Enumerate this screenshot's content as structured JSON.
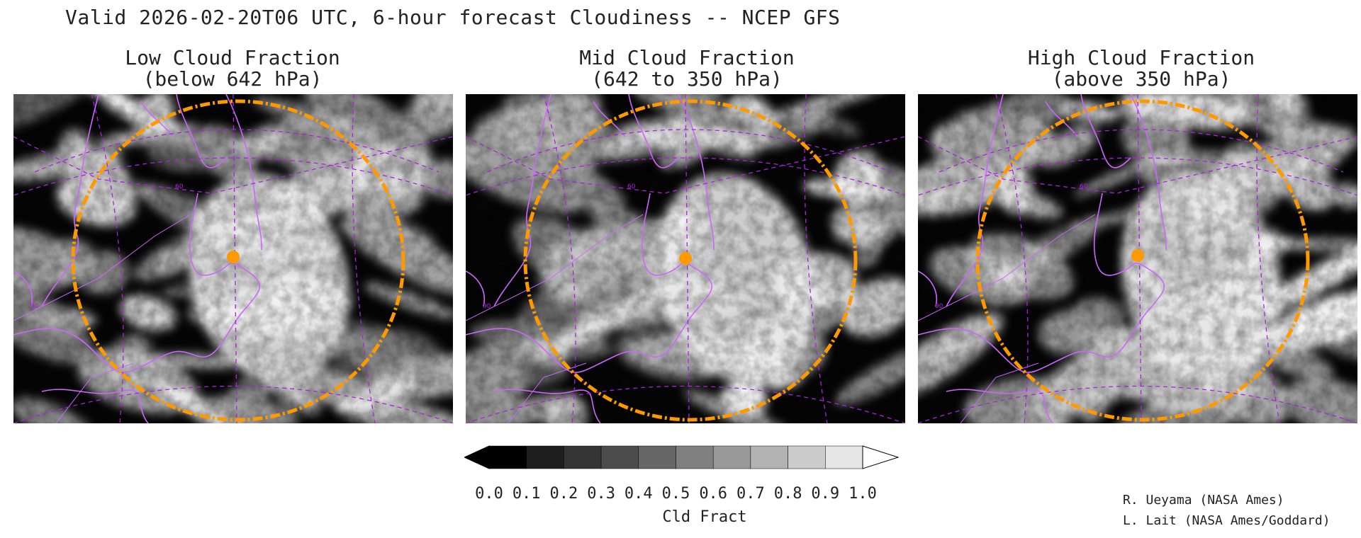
{
  "main_title": "Valid 2026-02-20T06 UTC, 6-hour forecast Cloudiness -- NCEP GFS",
  "panels": [
    {
      "title_line1": "Low Cloud Fraction",
      "title_line2": "(below 642 hPa)",
      "seed": 11,
      "bias": 0.62
    },
    {
      "title_line1": "Mid Cloud Fraction",
      "title_line2": "(642 to 350 hPa)",
      "seed": 27,
      "bias": 0.45
    },
    {
      "title_line1": "High Cloud Fraction",
      "title_line2": "(above 350 hPa)",
      "seed": 43,
      "bias": 0.5
    }
  ],
  "colorbar": {
    "tick_labels": [
      "0.0",
      "0.1",
      "0.2",
      "0.3",
      "0.4",
      "0.5",
      "0.6",
      "0.7",
      "0.8",
      "0.9",
      "1.0"
    ],
    "unit_label": "Cld Fract",
    "colors": [
      "#000000",
      "#1e1e1e",
      "#353535",
      "#4c4c4c",
      "#666666",
      "#808080",
      "#999999",
      "#b3b3b3",
      "#cccccc",
      "#e6e6e6",
      "#ffffff"
    ]
  },
  "credits": {
    "line1": "R. Ueyama (NASA Ames)",
    "line2": "L. Lait (NASA Ames/Goddard)"
  },
  "map_labels": {
    "lat60": "60",
    "lat90": "90"
  },
  "colors": {
    "coastline": "#cc66ff",
    "gridline": "#aa22dd",
    "range_ring": "#ff9900",
    "target_marker": "#ff9900"
  }
}
